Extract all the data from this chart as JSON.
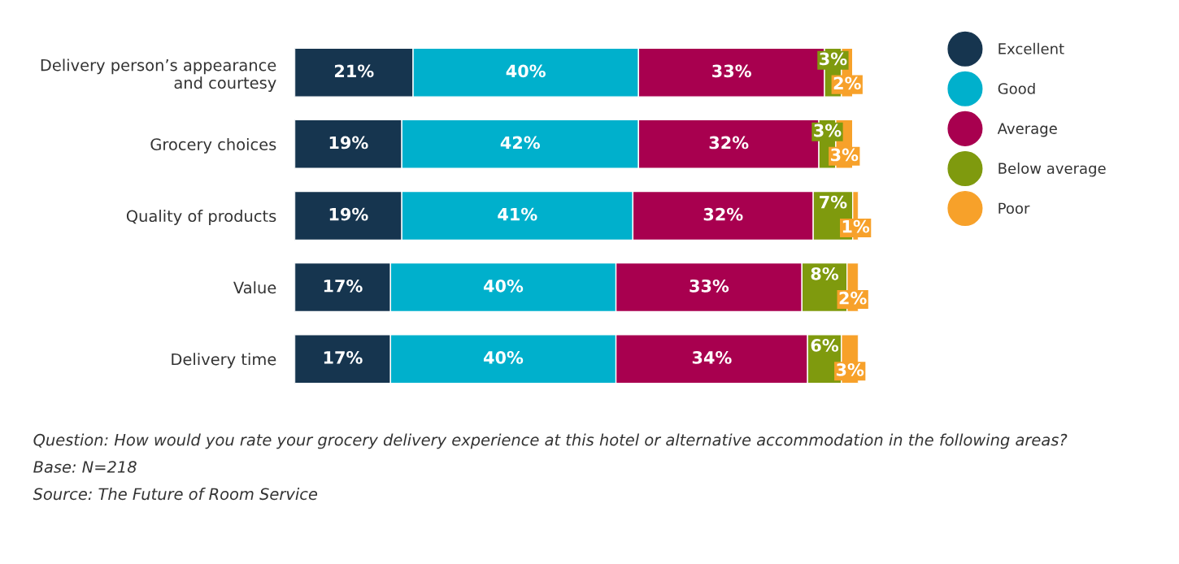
{
  "chart_data": {
    "type": "bar",
    "orientation": "horizontal",
    "stacked": true,
    "legend": "right",
    "grid": false,
    "categories": [
      "Delivery person’s appearance\nand courtesy",
      "Grocery choices",
      "Quality of products",
      "Value",
      "Delivery time"
    ],
    "series": [
      {
        "name": "Excellent",
        "color": "#16354f",
        "values": [
          21,
          19,
          19,
          17,
          17
        ],
        "value_labels": [
          "21%",
          "19%",
          "19%",
          "17%",
          "17%"
        ]
      },
      {
        "name": "Good",
        "color": "#00b0cc",
        "values": [
          40,
          42,
          41,
          40,
          40
        ],
        "value_labels": [
          "40%",
          "42%",
          "41%",
          "40%",
          "40%"
        ]
      },
      {
        "name": "Average",
        "color": "#a8004f",
        "values": [
          33,
          32,
          32,
          33,
          34
        ],
        "value_labels": [
          "33%",
          "32%",
          "32%",
          "33%",
          "34%"
        ]
      },
      {
        "name": "Below average",
        "color": "#7f9a0e",
        "values": [
          3,
          3,
          7,
          8,
          6
        ],
        "value_labels": [
          "3%",
          "3%",
          "7%",
          "8%",
          "6%"
        ]
      },
      {
        "name": "Poor",
        "color": "#f7a12a",
        "values": [
          2,
          3,
          1,
          2,
          3
        ],
        "value_labels": [
          "2%",
          "3%",
          "1%",
          "2%",
          "3%"
        ]
      }
    ],
    "annotations": [
      "Question: How would you rate your grocery delivery experience at this hotel or alternative accommodation in the following areas?",
      "Base: N=218",
      "Source: The Future of Room Service"
    ]
  }
}
